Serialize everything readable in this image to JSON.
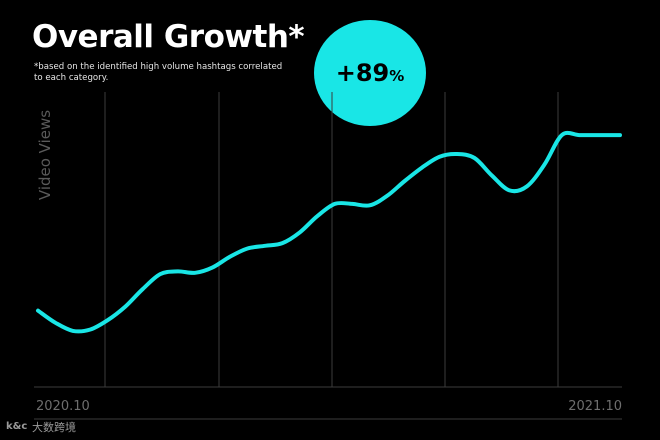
{
  "header": {
    "title": "Overall Growth*",
    "note": "*based on the identified high volume hashtags correlated to each category."
  },
  "badge": {
    "value": "+89",
    "unit": "%"
  },
  "watermark": {
    "logo": "k&c",
    "text": "大数跨境"
  },
  "colors": {
    "background": "#000000",
    "accent": "#19e6e6",
    "grid": "#3c3c3c",
    "axis_text": "#6e6e6e"
  },
  "chart_data": {
    "type": "line",
    "ylabel": "Video Views",
    "xlabel": "",
    "x_ticks": [
      "2020.10",
      "2021.10"
    ],
    "x": [
      0,
      0.03,
      0.06,
      0.09,
      0.12,
      0.15,
      0.18,
      0.21,
      0.24,
      0.27,
      0.3,
      0.33,
      0.36,
      0.39,
      0.42,
      0.45,
      0.48,
      0.51,
      0.54,
      0.57,
      0.6,
      0.63,
      0.66,
      0.69,
      0.72,
      0.75,
      0.78,
      0.81,
      0.84,
      0.87,
      0.9,
      0.93,
      0.96,
      1.0
    ],
    "series": [
      {
        "values": [
          0.22,
          0.175,
          0.145,
          0.15,
          0.185,
          0.235,
          0.3,
          0.355,
          0.365,
          0.36,
          0.38,
          0.42,
          0.45,
          0.46,
          0.47,
          0.51,
          0.57,
          0.615,
          0.615,
          0.61,
          0.645,
          0.7,
          0.75,
          0.79,
          0.8,
          0.785,
          0.72,
          0.665,
          0.68,
          0.76,
          0.87,
          0.87,
          0.87,
          0.87
        ]
      }
    ],
    "ylim": [
      0,
      1
    ],
    "grid": "vertical",
    "legend": "none"
  }
}
